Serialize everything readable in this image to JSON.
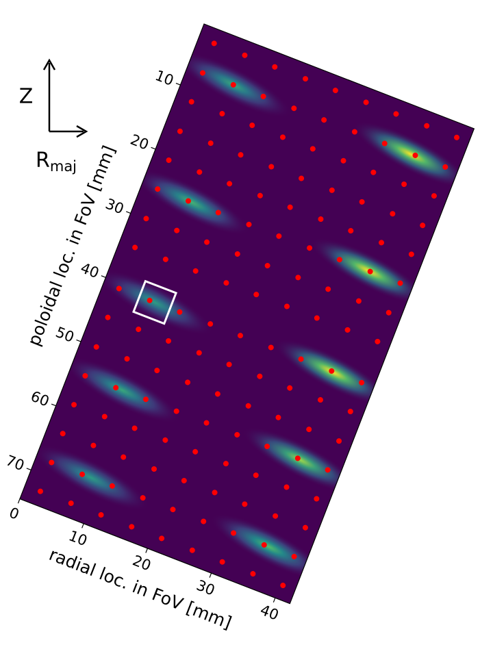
{
  "chart_data": {
    "type": "heatmap-scatter",
    "xlabel": "radial loc. in FoV [mm]",
    "ylabel": "poloidal loc. in FoV [mm]",
    "xlim": [
      0,
      42.3
    ],
    "ylim": [
      0.5,
      74.5
    ],
    "xticks": [
      0,
      10,
      20,
      30,
      40
    ],
    "yticks": [
      10,
      20,
      30,
      40,
      50,
      60,
      70
    ],
    "rotation": 21.2,
    "background_color": "#440154",
    "dot_color": "#ff0000",
    "highlight_color": "#ffffff",
    "highlight_index": 4,
    "compass": {
      "vertical": "Z",
      "horizontal": "R",
      "horizontal_subscript": "maj"
    },
    "hotspots": {
      "x": [
        7.2,
        35.1,
        7.7,
        35.5,
        8.0,
        35.9,
        8.2,
        36.2,
        8.6,
        36.4
      ],
      "y": [
        7.2,
        7.3,
        25.3,
        25.3,
        40.8,
        40.9,
        54.4,
        54.5,
        67.9,
        67.9
      ],
      "intensity": [
        0.6,
        1.0,
        0.65,
        1.0,
        0.55,
        1.0,
        0.6,
        0.85,
        0.55,
        0.7
      ]
    },
    "dots": {
      "x": [
        2.4,
        7.2,
        11.9,
        16.7,
        21.4,
        26.2,
        30.9,
        35.7,
        40.4,
        2.4,
        7.2,
        11.9,
        16.7,
        21.4,
        26.2,
        30.9,
        35.7,
        40.4,
        2.4,
        7.2,
        11.9,
        16.7,
        21.4,
        26.2,
        30.9,
        35.7,
        40.4,
        2.4,
        7.2,
        11.9,
        16.7,
        21.4,
        26.2,
        30.9,
        35.7,
        40.4,
        2.4,
        7.2,
        11.9,
        16.7,
        21.4,
        26.2,
        30.9,
        35.7,
        40.4,
        2.4,
        7.2,
        11.9,
        16.7,
        21.4,
        26.2,
        30.9,
        35.7,
        40.4,
        2.4,
        7.2,
        11.9,
        16.7,
        21.4,
        26.2,
        30.9,
        35.7,
        40.4,
        2.4,
        7.2,
        11.9,
        16.7,
        21.4,
        26.2,
        30.9,
        35.7,
        40.4,
        2.4,
        7.2,
        11.9,
        16.7,
        21.4,
        26.2,
        30.9,
        35.7,
        40.4,
        2.4,
        7.2,
        11.9,
        16.7,
        21.4,
        26.2,
        30.9,
        35.7,
        40.4,
        2.4,
        7.2,
        11.9,
        16.7,
        21.4,
        26.2,
        30.9,
        35.7,
        40.4,
        2.4,
        7.2,
        11.9,
        16.7,
        21.4,
        26.2,
        30.9,
        35.7,
        40.4,
        2.4,
        7.2,
        11.9,
        16.7,
        21.4,
        26.2,
        30.9,
        35.7,
        40.4,
        2.4,
        7.2,
        11.9,
        16.7,
        21.4,
        26.2,
        30.9,
        35.7,
        40.4,
        2.4,
        7.2,
        11.9,
        16.7,
        21.4,
        26.2,
        30.9,
        35.7,
        40.4,
        2.4,
        7.2,
        11.9,
        16.7,
        21.4,
        26.2,
        30.9,
        35.7,
        40.4
      ],
      "y": [
        2.6,
        2.6,
        2.6,
        2.6,
        2.6,
        2.6,
        2.6,
        2.6,
        2.6,
        7.2,
        7.2,
        7.2,
        7.2,
        7.2,
        7.2,
        7.2,
        7.2,
        7.2,
        11.7,
        11.7,
        11.7,
        11.7,
        11.7,
        11.7,
        11.7,
        11.7,
        11.7,
        16.3,
        16.3,
        16.3,
        16.3,
        16.3,
        16.3,
        16.3,
        16.3,
        16.3,
        20.8,
        20.8,
        20.8,
        20.8,
        20.8,
        20.8,
        20.8,
        20.8,
        20.8,
        25.3,
        25.3,
        25.3,
        25.3,
        25.3,
        25.3,
        25.3,
        25.3,
        25.3,
        29.9,
        29.9,
        29.9,
        29.9,
        29.9,
        29.9,
        29.9,
        29.9,
        29.9,
        34.4,
        34.4,
        34.4,
        34.4,
        34.4,
        34.4,
        34.4,
        34.4,
        34.4,
        40.8,
        40.8,
        40.8,
        40.8,
        40.8,
        40.8,
        40.8,
        40.8,
        40.8,
        45.3,
        45.3,
        45.3,
        45.3,
        45.3,
        45.3,
        45.3,
        45.3,
        45.3,
        49.9,
        49.9,
        49.9,
        49.9,
        49.9,
        49.9,
        49.9,
        49.9,
        49.9,
        54.4,
        54.4,
        54.4,
        54.4,
        54.4,
        54.4,
        54.4,
        54.4,
        54.4,
        58.9,
        58.9,
        58.9,
        58.9,
        58.9,
        58.9,
        58.9,
        58.9,
        58.9,
        63.4,
        63.4,
        63.4,
        63.4,
        63.4,
        63.4,
        63.4,
        63.4,
        63.4,
        67.9,
        67.9,
        67.9,
        67.9,
        67.9,
        67.9,
        67.9,
        67.9,
        67.9,
        72.4,
        72.4,
        72.4,
        72.4,
        72.4,
        72.4,
        72.4,
        72.4,
        72.4
      ]
    }
  }
}
